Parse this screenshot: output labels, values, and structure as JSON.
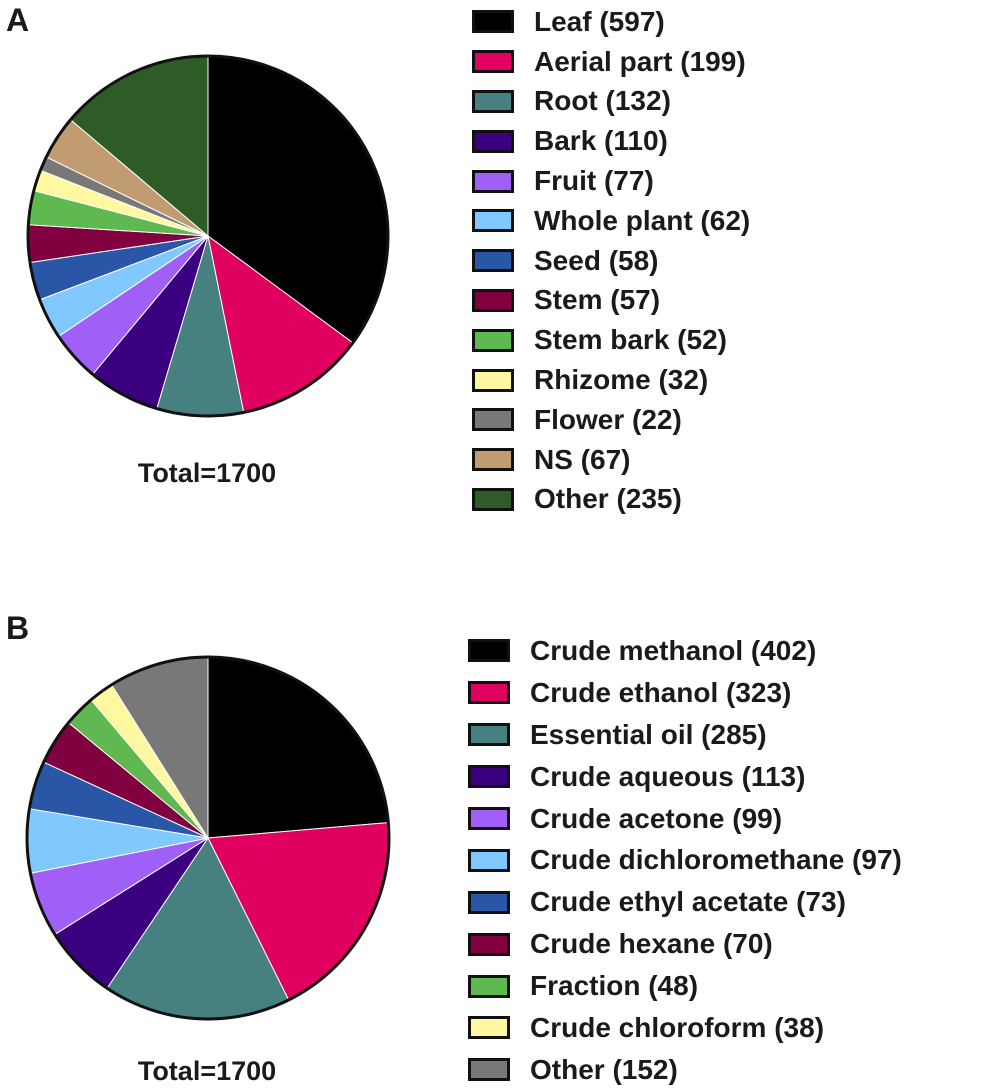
{
  "chart_data": [
    {
      "type": "pie",
      "panel_label": "A",
      "total_label": "Total=1700",
      "legend_placement": "right",
      "slices": [
        {
          "label": "Leaf (597)",
          "value": 597,
          "color": "#000000"
        },
        {
          "label": "Aerial part (199)",
          "value": 199,
          "color": "#e0005f"
        },
        {
          "label": "Root (132)",
          "value": 132,
          "color": "#468080"
        },
        {
          "label": "Bark (110)",
          "value": 110,
          "color": "#3a0080"
        },
        {
          "label": "Fruit (77)",
          "value": 77,
          "color": "#a060f8"
        },
        {
          "label": "Whole plant (62)",
          "value": 62,
          "color": "#80c8ff"
        },
        {
          "label": "Seed (58)",
          "value": 58,
          "color": "#2a56a8"
        },
        {
          "label": "Stem (57)",
          "value": 57,
          "color": "#800040"
        },
        {
          "label": "Stem bark (52)",
          "value": 52,
          "color": "#60b850"
        },
        {
          "label": "Rhizome (32)",
          "value": 32,
          "color": "#fff8a0"
        },
        {
          "label": "Flower (22)",
          "value": 22,
          "color": "#787878"
        },
        {
          "label": "NS (67)",
          "value": 67,
          "color": "#c09c70"
        },
        {
          "label": "Other (235)",
          "value": 235,
          "color": "#2e5c26"
        }
      ]
    },
    {
      "type": "pie",
      "panel_label": "B",
      "total_label": "Total=1700",
      "legend_placement": "right",
      "slices": [
        {
          "label": "Crude methanol (402)",
          "value": 402,
          "color": "#000000"
        },
        {
          "label": "Crude ethanol (323)",
          "value": 323,
          "color": "#e0005f"
        },
        {
          "label": "Essential oil (285)",
          "value": 285,
          "color": "#468080"
        },
        {
          "label": "Crude aqueous (113)",
          "value": 113,
          "color": "#3a0080"
        },
        {
          "label": "Crude acetone (99)",
          "value": 99,
          "color": "#a060f8"
        },
        {
          "label": "Crude dichloromethane (97)",
          "value": 97,
          "color": "#80c8ff"
        },
        {
          "label": "Crude ethyl acetate (73)",
          "value": 73,
          "color": "#2a56a8"
        },
        {
          "label": "Crude hexane (70)",
          "value": 70,
          "color": "#800040"
        },
        {
          "label": "Fraction (48)",
          "value": 48,
          "color": "#60b850"
        },
        {
          "label": "Crude chloroform (38)",
          "value": 38,
          "color": "#fff8a0"
        },
        {
          "label": "Other (152)",
          "value": 152,
          "color": "#787878"
        }
      ]
    }
  ]
}
